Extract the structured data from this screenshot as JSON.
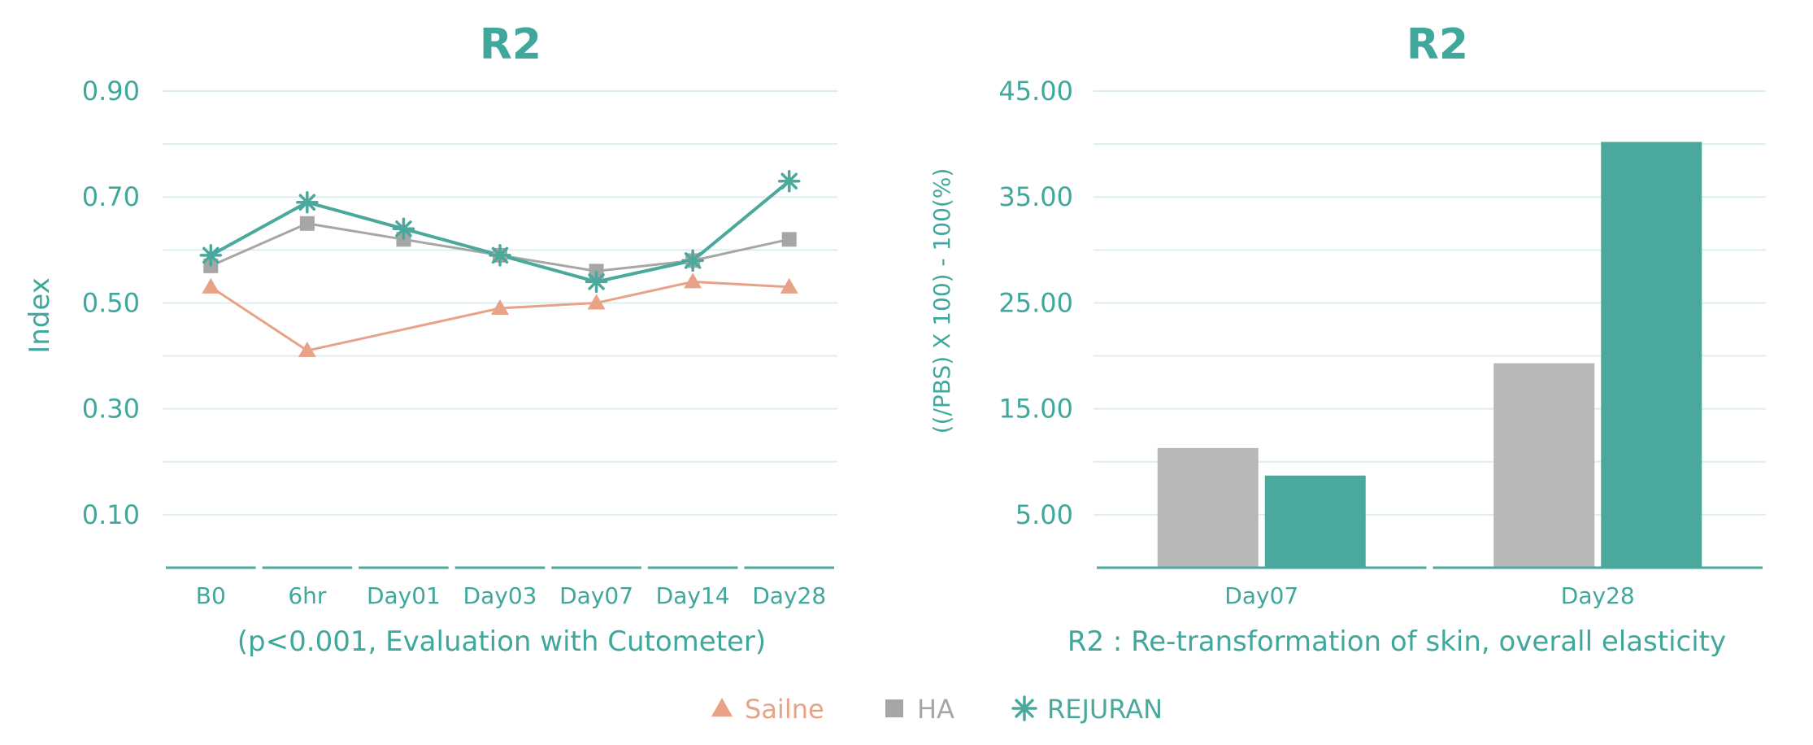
{
  "colors": {
    "saline": "#E8A287",
    "ha": "#A6A6A6",
    "ha_bar": "#B7B7B7",
    "rejuran": "#4BA89C",
    "grid": "#DCEFEE",
    "text": "#3FA79B"
  },
  "legend": [
    {
      "label": "Sailne",
      "marker": "triangle",
      "color_key": "saline"
    },
    {
      "label": "HA",
      "marker": "square",
      "color_key": "ha"
    },
    {
      "label": "REJURAN",
      "marker": "asterisk",
      "color_key": "rejuran"
    }
  ],
  "chart_data": [
    {
      "type": "line",
      "title": "R2",
      "ylabel": "Index",
      "xlabel": "(p<0.001, Evaluation with Cutometer)",
      "categories": [
        "B0",
        "6hr",
        "Day01",
        "Day03",
        "Day07",
        "Day14",
        "Day28"
      ],
      "ylim": [
        0,
        0.9
      ],
      "yticks": [
        "0.90",
        "0.70",
        "0.50",
        "0.30",
        "0.10"
      ],
      "grid": true,
      "series": [
        {
          "name": "Sailne",
          "values": [
            0.53,
            0.41,
            null,
            0.49,
            0.5,
            0.54,
            0.53
          ]
        },
        {
          "name": "HA",
          "values": [
            0.57,
            0.65,
            0.62,
            0.59,
            0.56,
            0.58,
            0.62
          ]
        },
        {
          "name": "REJURAN",
          "values": [
            0.59,
            0.69,
            0.64,
            0.59,
            0.54,
            0.58,
            0.73
          ]
        }
      ]
    },
    {
      "type": "bar",
      "title": "R2",
      "ylabel": "((/PBS) X 100) - 100(%)",
      "xlabel": "R2 : Re-transformation of skin, overall elasticity",
      "categories": [
        "Day07",
        "Day28"
      ],
      "ylim": [
        0,
        45
      ],
      "yticks": [
        "45.00",
        "35.00",
        "25.00",
        "15.00",
        "5.00"
      ],
      "grid": true,
      "series": [
        {
          "name": "HA",
          "values": [
            11.3,
            19.3
          ]
        },
        {
          "name": "REJURAN",
          "values": [
            8.7,
            40.2
          ]
        }
      ]
    }
  ]
}
